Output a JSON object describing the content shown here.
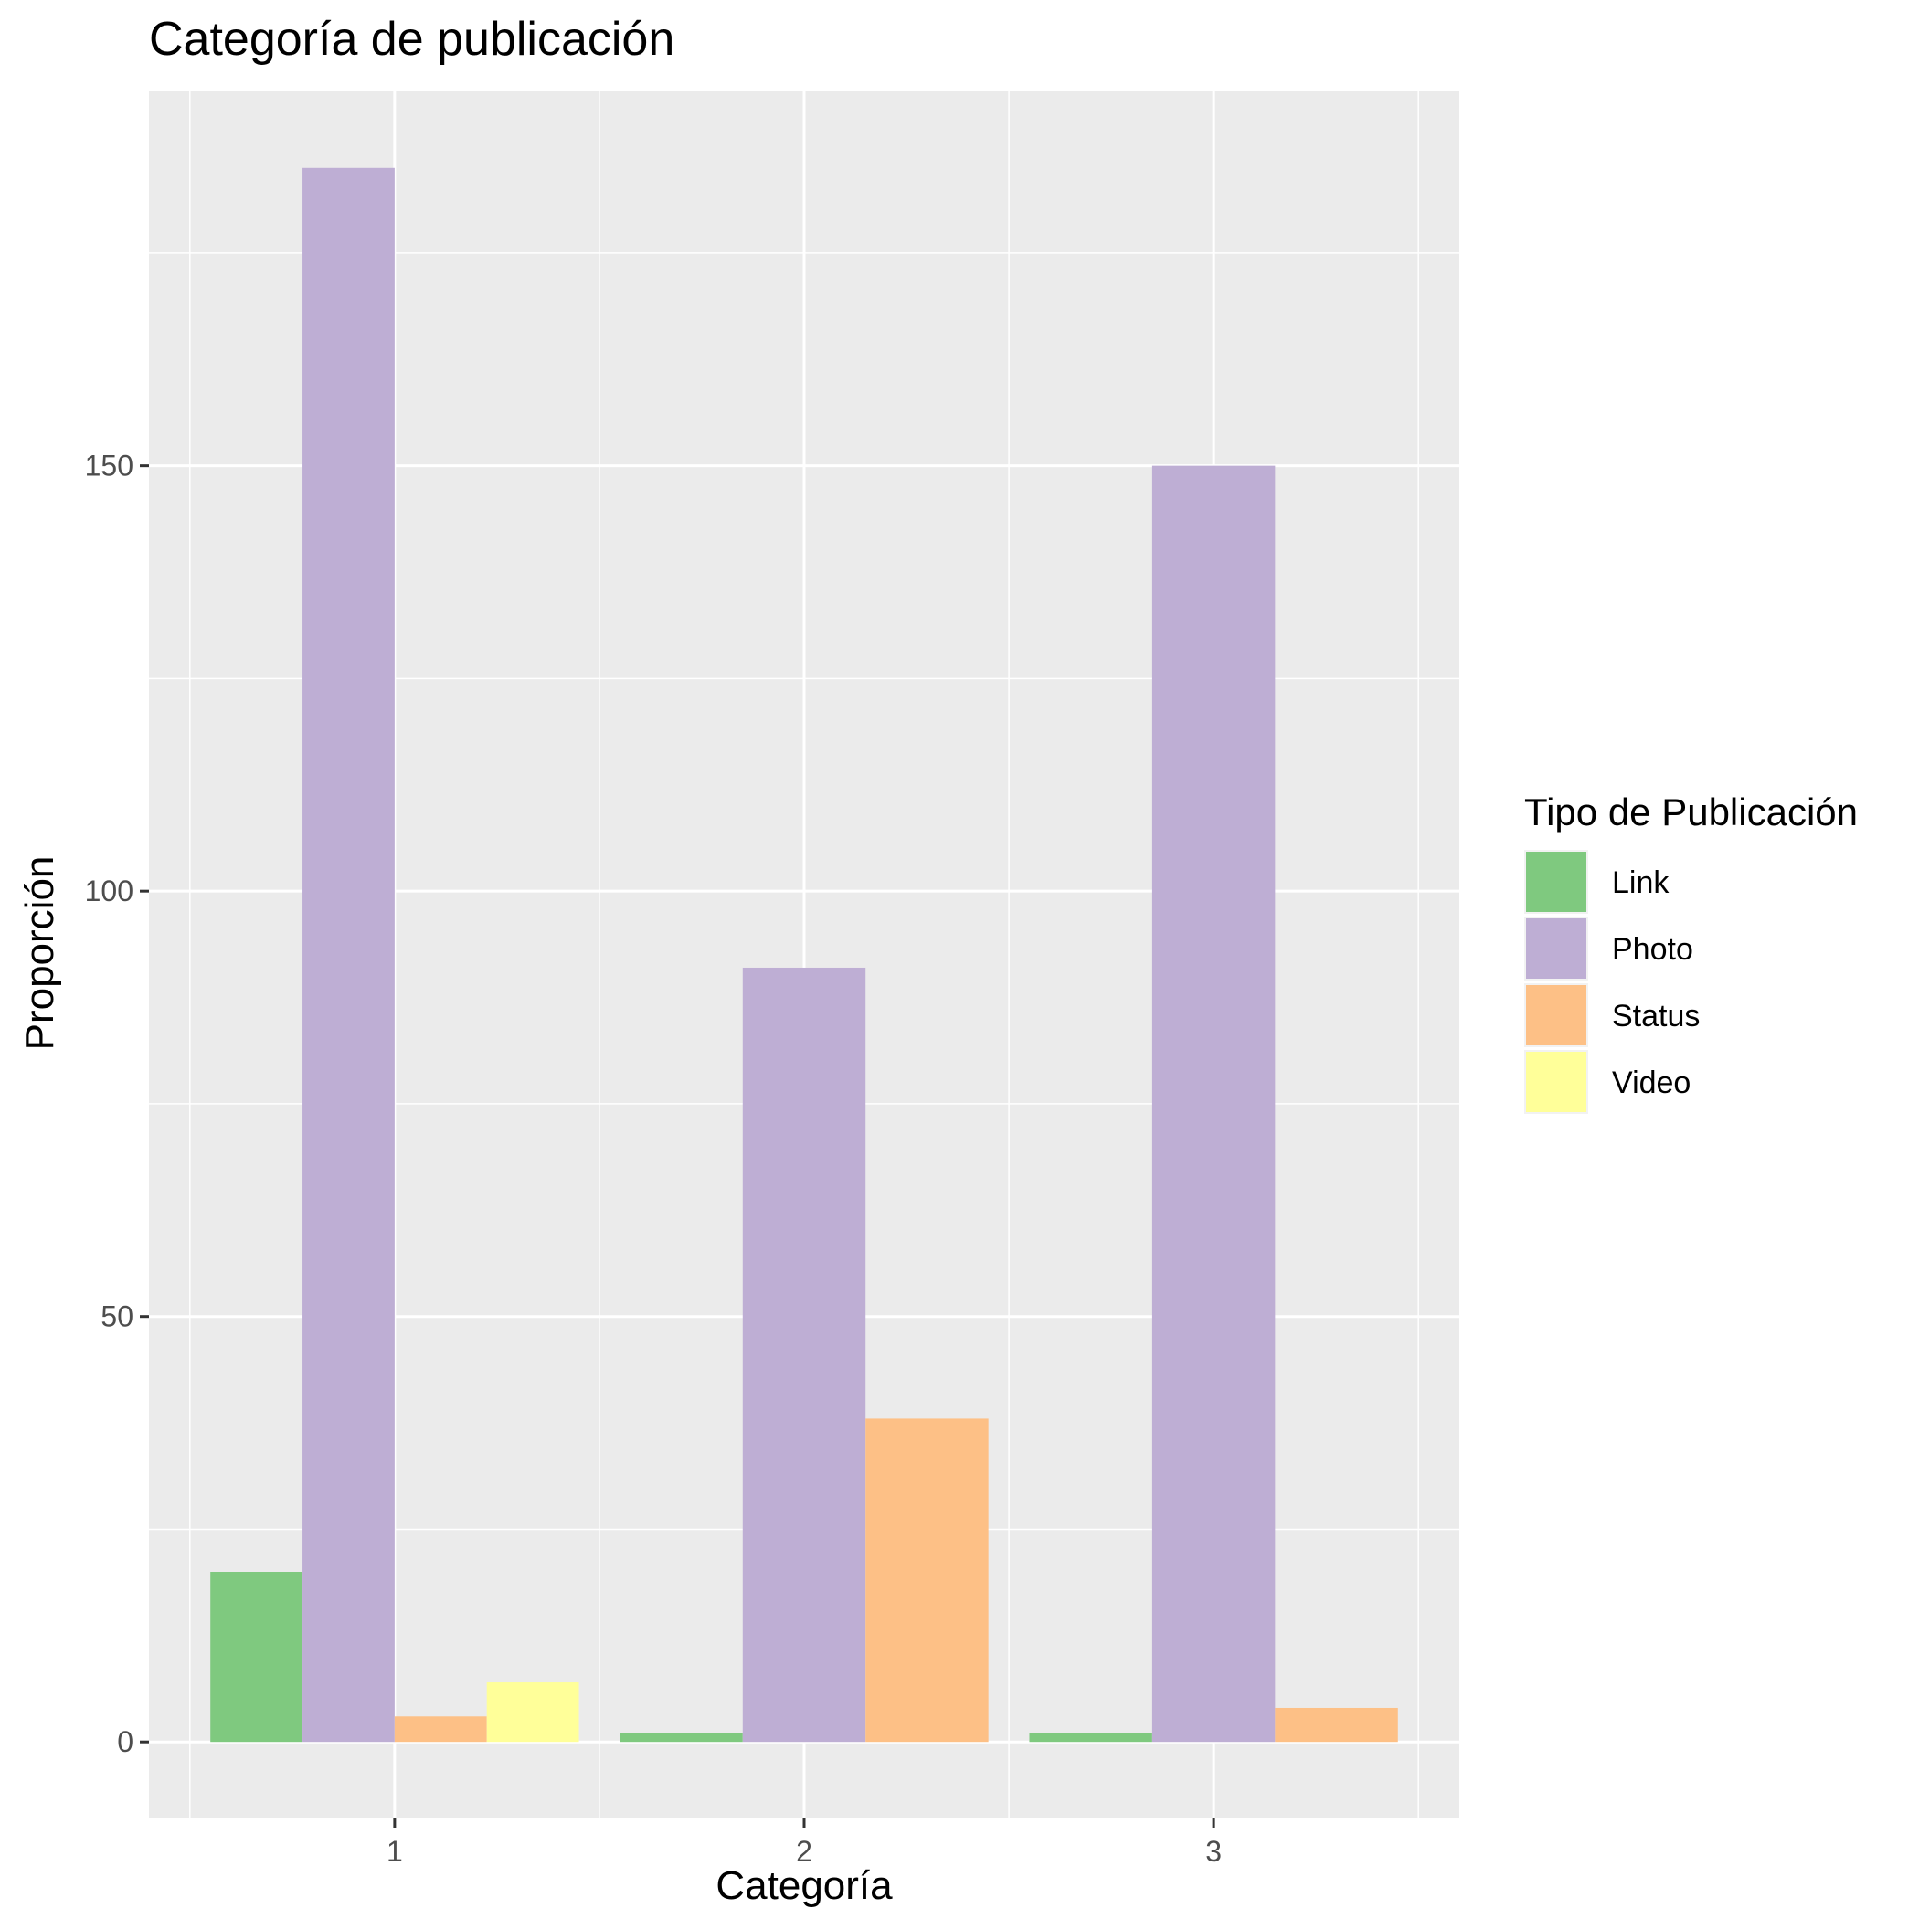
{
  "chart_data": {
    "type": "bar",
    "title": "Categoría de publicación",
    "xlabel": "Categoría",
    "ylabel": "Proporción",
    "categories": [
      "1",
      "2",
      "3"
    ],
    "y_ticks": [
      0,
      50,
      100,
      150
    ],
    "ylim": [
      -9,
      194
    ],
    "grid": true,
    "legend": {
      "title": "Tipo de Publicación",
      "position": "right"
    },
    "colors": {
      "panel": "#EBEBEB",
      "grid": "#FFFFFF"
    },
    "series": [
      {
        "name": "Link",
        "color": "#7FC97F",
        "values": [
          20,
          1,
          1
        ]
      },
      {
        "name": "Photo",
        "color": "#BEAED4",
        "values": [
          185,
          91,
          150
        ]
      },
      {
        "name": "Status",
        "color": "#FDC086",
        "values": [
          3,
          38,
          4
        ]
      },
      {
        "name": "Video",
        "color": "#FFFF99",
        "values": [
          7,
          null,
          null
        ]
      }
    ]
  }
}
